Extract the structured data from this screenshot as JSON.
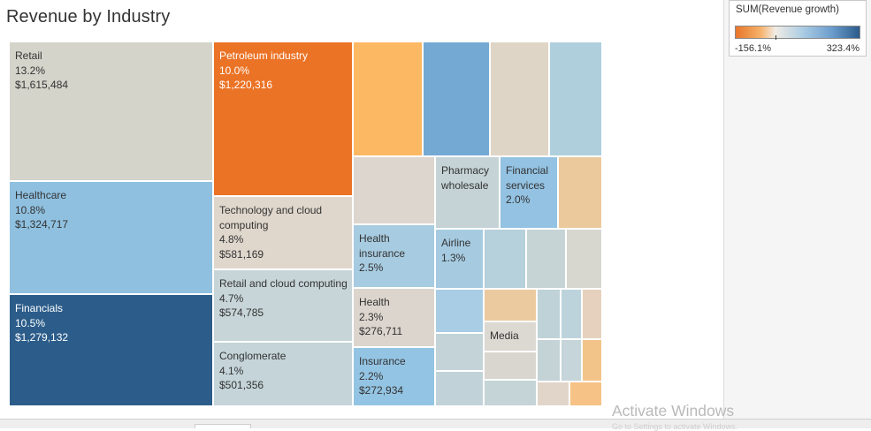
{
  "title": "Revenue by Industry",
  "legend": {
    "title": "SUM(Revenue growth)",
    "min_label": "-156.1%",
    "max_label": "323.4%",
    "colors": [
      "#e8762b",
      "#f6b16a",
      "#f1ece4",
      "#a9cbe3",
      "#6b9ccc",
      "#2b5b8a"
    ]
  },
  "watermark": {
    "main": "Activate Windows",
    "sub": "Go to Settings to activate Windows."
  },
  "chart_data": {
    "type": "treemap",
    "title": "Revenue by Industry",
    "size_measure": "Revenue",
    "color_measure": "SUM(Revenue growth)",
    "color_range": [
      -156.1,
      323.4
    ],
    "items": [
      {
        "name": "Retail",
        "share": "13.2%",
        "revenue": "$1,615,484",
        "color": "#d4d4cb",
        "text": "#333333"
      },
      {
        "name": "Healthcare",
        "share": "10.8%",
        "revenue": "$1,324,717",
        "color": "#8fc0e0",
        "text": "#333333"
      },
      {
        "name": "Financials",
        "share": "10.5%",
        "revenue": "$1,279,132",
        "color": "#2c5d8a",
        "text": "#ffffff"
      },
      {
        "name": "Petroleum industry",
        "share": "10.0%",
        "revenue": "$1,220,316",
        "color": "#eb7325",
        "text": "#ffffff"
      },
      {
        "name": "Technology and cloud computing",
        "share": "4.8%",
        "revenue": "$581,169",
        "color": "#dfd7cc",
        "text": "#333333"
      },
      {
        "name": "Retail and cloud computing",
        "share": "4.7%",
        "revenue": "$574,785",
        "color": "#c7d4d8",
        "text": "#333333"
      },
      {
        "name": "Conglomerate",
        "share": "4.1%",
        "revenue": "$501,356",
        "color": "#c4d4d9",
        "text": "#333333"
      },
      {
        "name": "Health insurance",
        "share": "2.5%",
        "revenue": "",
        "color": "#a7cbe0",
        "text": "#333333"
      },
      {
        "name": "Health",
        "share": "2.3%",
        "revenue": "$276,711",
        "color": "#dcd5cd",
        "text": "#333333"
      },
      {
        "name": "Insurance",
        "share": "2.2%",
        "revenue": "$272,934",
        "color": "#94c4e3",
        "text": "#333333"
      },
      {
        "name": "Pharmacy wholesale",
        "share": "",
        "revenue": "",
        "color": "#c5d3d6",
        "text": "#333333"
      },
      {
        "name": "Financial services",
        "share": "2.0%",
        "revenue": "",
        "color": "#93c2e2",
        "text": "#333333"
      },
      {
        "name": "Airline",
        "share": "1.3%",
        "revenue": "",
        "color": "#a6cbe1",
        "text": "#333333"
      },
      {
        "name": "Media",
        "share": "",
        "revenue": "",
        "color": "#dcd8d2",
        "text": "#333333"
      }
    ],
    "unlabeled_tiles": 27
  }
}
